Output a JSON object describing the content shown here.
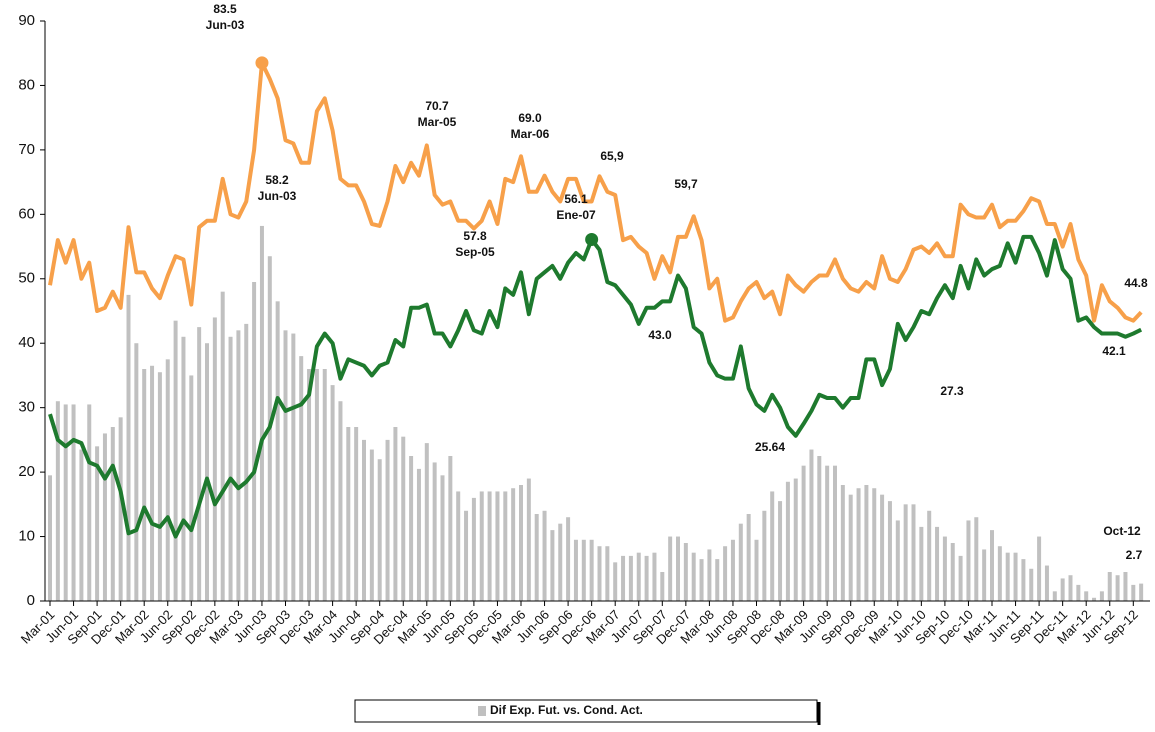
{
  "chart_data": {
    "type": "bar",
    "categories": [
      "Mar-01",
      null,
      null,
      "Jun-01",
      null,
      null,
      "Sep-01",
      null,
      null,
      "Dec-01",
      null,
      null,
      "Mar-02",
      null,
      null,
      "Jun-02",
      null,
      null,
      "Sep-02",
      null,
      null,
      "Dec-02",
      null,
      null,
      "Mar-03",
      null,
      null,
      "Jun-03",
      null,
      null,
      "Sep-03",
      null,
      null,
      "Dec-03",
      null,
      null,
      "Mar-04",
      null,
      null,
      "Jun-04",
      null,
      null,
      "Sep-04",
      null,
      null,
      "Dec-04",
      null,
      null,
      "Mar-05",
      null,
      null,
      "Jun-05",
      null,
      null,
      "Sep-05",
      null,
      null,
      "Dec-05",
      null,
      null,
      "Mar-06",
      null,
      null,
      "Jun-06",
      null,
      null,
      "Sep-06",
      null,
      null,
      "Dec-06",
      null,
      null,
      "Mar-07",
      null,
      null,
      "Jun-07",
      null,
      null,
      "Sep-07",
      null,
      null,
      "Dec-07",
      null,
      null,
      "Mar-08",
      null,
      null,
      "Jun-08",
      null,
      null,
      "Sep-08",
      null,
      null,
      "Dec-08",
      null,
      null,
      "Mar-09",
      null,
      null,
      "Jun-09",
      null,
      null,
      "Sep-09",
      null,
      null,
      "Dec-09",
      null,
      null,
      "Mar-10",
      null,
      null,
      "Jun-10",
      null,
      null,
      "Sep-10",
      null,
      null,
      "Dec-10",
      null,
      null,
      "Mar-11",
      null,
      null,
      "Jun-11",
      null,
      null,
      "Sep-11",
      null,
      null,
      "Dec-11",
      null,
      null,
      "Mar-12",
      null,
      null,
      "Jun-12",
      null,
      null,
      "Sep-12",
      null
    ],
    "series": [
      {
        "name": "Dif Exp. Fut. vs. Cond. Act.",
        "type": "bar",
        "color": "#c0c0c0",
        "values": [
          19.5,
          31,
          30.5,
          30.5,
          23.5,
          30.5,
          24,
          26,
          27,
          28.5,
          47.5,
          40,
          36,
          36.5,
          35.5,
          37.5,
          43.5,
          41,
          35,
          42.5,
          40,
          44,
          48,
          41,
          42,
          43,
          49.5,
          58.2,
          53.5,
          46.5,
          42,
          41.5,
          38,
          36,
          36,
          36,
          33.5,
          31,
          27,
          27,
          25,
          23.5,
          22,
          25,
          27,
          25.5,
          22.5,
          20.5,
          24.5,
          21.5,
          19.5,
          22.5,
          17,
          14,
          16,
          17,
          17,
          17,
          17,
          17.5,
          18,
          19,
          13.5,
          14,
          11,
          12,
          13,
          9.5,
          9.5,
          9.5,
          8.5,
          8.5,
          6,
          7,
          7,
          7.5,
          7,
          7.5,
          4.5,
          10,
          10,
          9,
          7.5,
          6.5,
          8,
          6.5,
          8.5,
          9.5,
          12,
          13.5,
          9.5,
          14,
          17,
          15.5,
          18.5,
          19,
          21,
          23.5,
          22.5,
          21,
          21,
          18,
          16.5,
          17.5,
          18,
          17.5,
          16.5,
          15.5,
          12.5,
          15,
          15,
          11.5,
          14,
          11.5,
          10,
          9,
          7,
          12.5,
          13,
          8,
          11,
          8.5,
          7.5,
          7.5,
          6.5,
          5,
          10,
          5.5,
          1.5,
          3.5,
          4,
          2.5,
          1.5,
          0.5,
          1.5,
          4.5,
          4,
          4.5,
          2.5,
          2.7
        ]
      },
      {
        "type": "line",
        "color": "#f7a04a",
        "values": [
          49,
          56,
          52.5,
          56,
          50,
          52.5,
          45,
          45.5,
          48,
          45.5,
          58,
          51,
          51,
          48.5,
          47,
          50.5,
          53.5,
          53,
          46,
          58,
          59,
          59,
          65.5,
          60,
          59.5,
          62,
          70,
          83.5,
          81,
          78,
          71.5,
          71,
          68,
          68,
          76,
          78,
          73,
          65.5,
          64.5,
          64.5,
          62,
          58.5,
          58.2,
          62,
          67.5,
          65,
          68,
          66,
          70.7,
          63,
          61.5,
          62,
          59,
          59,
          57.8,
          59,
          62,
          58.5,
          65.5,
          65,
          69,
          63.5,
          63.5,
          66,
          63.5,
          62,
          65.5,
          65.5,
          62,
          62,
          65.9,
          63.5,
          63,
          56,
          56.5,
          55,
          54,
          50,
          53.5,
          51,
          56.5,
          56.5,
          59.7,
          56,
          48.5,
          50,
          43.5,
          44,
          46.5,
          48.5,
          49.5,
          47,
          48,
          44.5,
          50.5,
          49,
          48,
          49.5,
          50.5,
          50.5,
          53,
          50,
          48.5,
          48,
          49.5,
          48.5,
          53.5,
          50,
          49.5,
          51.5,
          54.5,
          55,
          54,
          55.5,
          53.5,
          53.5,
          61.5,
          60,
          59.5,
          59.5,
          61.5,
          58,
          59,
          59,
          60.5,
          62.5,
          62,
          58.5,
          58.5,
          55,
          58.5,
          53,
          50.5,
          43.5,
          49,
          46.5,
          45.5,
          44,
          43.5,
          44.8
        ]
      },
      {
        "type": "line",
        "color": "#1e7a2e",
        "values": [
          29,
          25,
          24,
          25,
          24.5,
          21.5,
          21,
          19,
          21,
          17,
          10.5,
          11,
          14.5,
          12,
          11.5,
          13,
          10,
          12.5,
          11,
          15,
          19,
          15,
          17,
          19,
          17.5,
          18.5,
          20,
          25,
          27,
          31.5,
          29.5,
          30,
          30.5,
          32,
          39.5,
          41.5,
          40,
          34.5,
          37.5,
          37,
          36.5,
          35,
          36.5,
          37,
          40.5,
          39.5,
          45.5,
          45.5,
          46,
          41.5,
          41.5,
          39.5,
          42,
          45,
          42,
          41.5,
          45,
          42.5,
          48.5,
          47.5,
          51,
          44.5,
          50,
          51,
          52,
          50,
          52.5,
          54,
          53,
          56.1,
          54.5,
          49.5,
          49,
          47.5,
          46,
          43,
          45.5,
          45.5,
          46.5,
          46.5,
          50.5,
          48.5,
          42.5,
          41.5,
          37,
          35,
          34.5,
          34.5,
          39.5,
          33,
          30.5,
          29.5,
          32,
          30,
          27,
          25.64,
          27.5,
          29.5,
          32,
          31.5,
          31.5,
          30,
          31.5,
          31.5,
          37.5,
          37.5,
          33.5,
          36,
          43,
          40.5,
          42.5,
          45,
          44.5,
          47,
          49,
          47,
          52,
          48.5,
          53,
          50.5,
          51.5,
          52,
          55.5,
          52.5,
          56.5,
          56.5,
          54,
          50.5,
          56,
          51.5,
          50,
          43.5,
          44,
          42.5,
          41.5,
          41.5,
          41.5,
          41,
          41.5,
          42.1
        ]
      }
    ],
    "highlights": [
      {
        "series": 1,
        "index": 27
      },
      {
        "series": 2,
        "index": 69
      }
    ],
    "annotations": [
      {
        "lines": [
          "83.5",
          "Jun-03"
        ]
      },
      {
        "lines": [
          "58.2",
          "Jun-03"
        ]
      },
      {
        "lines": [
          "70.7",
          "Mar-05"
        ]
      },
      {
        "lines": [
          "69.0",
          "Mar-06"
        ]
      },
      {
        "lines": [
          "56.1",
          "Ene-07"
        ]
      },
      {
        "lines": [
          "57.8",
          "Sep-05"
        ]
      },
      {
        "lines": [
          "65,9"
        ]
      },
      {
        "lines": [
          "59,7"
        ]
      },
      {
        "lines": [
          "43.0"
        ]
      },
      {
        "lines": [
          "25.64"
        ]
      },
      {
        "lines": [
          "27.3"
        ]
      },
      {
        "lines": [
          "44.8"
        ]
      },
      {
        "lines": [
          "42.1"
        ]
      },
      {
        "lines": [
          "Oct-12",
          "2.7"
        ]
      }
    ],
    "ylim": [
      0,
      90
    ],
    "yticks": [
      0,
      10,
      20,
      30,
      40,
      50,
      60,
      70,
      80,
      90
    ],
    "legend": "bottom"
  }
}
